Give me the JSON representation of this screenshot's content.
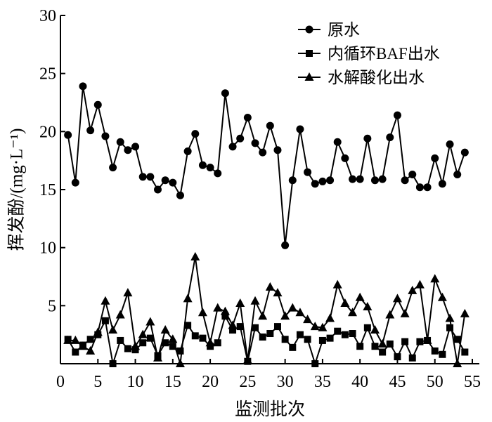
{
  "chart_data": {
    "type": "line",
    "title": "",
    "xlabel": "监测批次",
    "ylabel": "挥发酚/(mg·L⁻¹)",
    "xlim": [
      0,
      55
    ],
    "ylim": [
      0,
      30
    ],
    "xticks": [
      0,
      5,
      10,
      15,
      20,
      25,
      30,
      35,
      40,
      45,
      50,
      55
    ],
    "yticks": [
      5,
      10,
      15,
      20,
      25,
      30
    ],
    "grid": false,
    "legend_position": "top-right",
    "line_color": "#000000",
    "x": [
      1,
      2,
      3,
      4,
      5,
      6,
      7,
      8,
      9,
      10,
      11,
      12,
      13,
      14,
      15,
      16,
      17,
      18,
      19,
      20,
      21,
      22,
      23,
      24,
      25,
      26,
      27,
      28,
      29,
      30,
      31,
      32,
      33,
      34,
      35,
      36,
      37,
      38,
      39,
      40,
      41,
      42,
      43,
      44,
      45,
      46,
      47,
      48,
      49,
      50,
      51,
      52,
      53,
      54
    ],
    "series": [
      {
        "name": "原水",
        "marker": "circle",
        "values": [
          19.7,
          15.6,
          23.9,
          20.1,
          22.3,
          19.6,
          16.9,
          19.1,
          18.4,
          18.7,
          16.1,
          16.1,
          15.0,
          15.8,
          15.6,
          14.5,
          18.3,
          19.8,
          17.1,
          16.9,
          16.4,
          23.3,
          18.7,
          19.4,
          21.2,
          19.0,
          18.2,
          20.5,
          18.4,
          10.2,
          15.8,
          20.2,
          16.5,
          15.5,
          15.7,
          15.8,
          19.1,
          17.7,
          15.9,
          15.9,
          19.4,
          15.8,
          15.9,
          19.5,
          21.4,
          15.8,
          16.3,
          15.2,
          15.2,
          17.7,
          15.5,
          18.9,
          16.3,
          18.2
        ]
      },
      {
        "name": "内循环BAF出水",
        "marker": "square",
        "values": [
          2.1,
          1.0,
          1.6,
          2.1,
          2.5,
          3.7,
          0.0,
          2.0,
          1.3,
          1.2,
          1.8,
          2.2,
          0.7,
          1.8,
          1.5,
          1.1,
          3.3,
          2.4,
          2.2,
          1.5,
          1.8,
          4.1,
          2.9,
          3.2,
          0.2,
          3.1,
          2.3,
          2.6,
          3.2,
          2.1,
          1.4,
          2.5,
          2.1,
          0.0,
          2.0,
          2.2,
          2.8,
          2.5,
          2.6,
          1.5,
          3.1,
          1.5,
          1.0,
          1.7,
          0.6,
          1.9,
          0.5,
          1.9,
          2.0,
          1.1,
          0.8,
          3.1,
          2.1,
          1.0
        ]
      },
      {
        "name": "水解酸化出水",
        "marker": "triangle",
        "values": [
          2.0,
          2.0,
          1.5,
          1.1,
          2.7,
          5.4,
          2.9,
          4.2,
          6.1,
          1.5,
          2.5,
          3.6,
          0.5,
          2.9,
          2.1,
          0.0,
          5.6,
          9.2,
          4.4,
          1.8,
          4.8,
          4.5,
          3.3,
          5.2,
          0.3,
          5.4,
          4.1,
          6.6,
          6.1,
          4.1,
          4.8,
          4.4,
          3.8,
          3.2,
          3.1,
          3.9,
          6.8,
          5.2,
          4.4,
          5.7,
          4.9,
          2.9,
          1.7,
          4.2,
          5.6,
          4.3,
          6.3,
          6.8,
          2.0,
          7.3,
          5.7,
          3.9,
          0.0,
          4.3
        ]
      }
    ]
  }
}
